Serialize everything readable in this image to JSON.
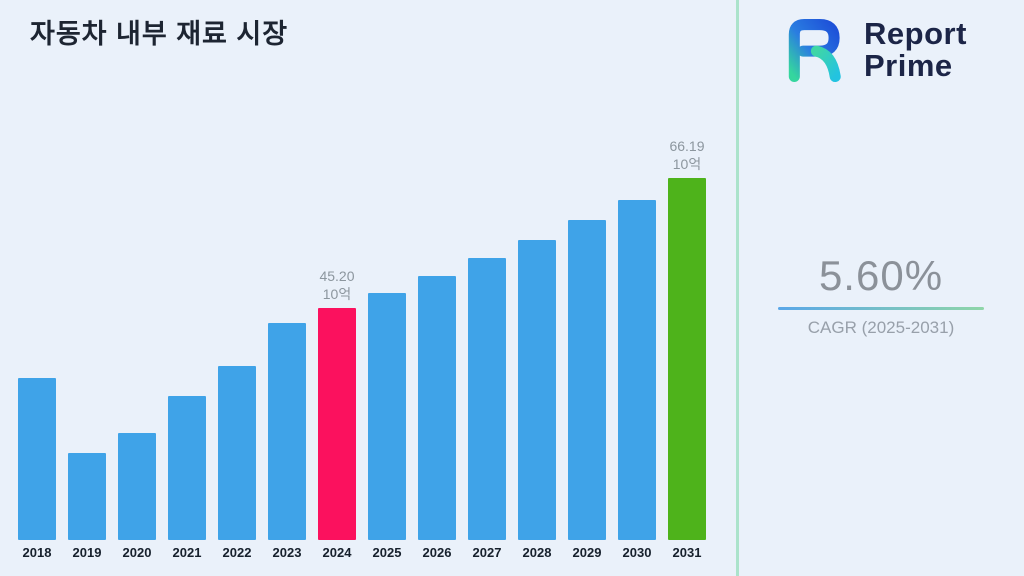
{
  "page": {
    "title": "자동차 내부 재료 시장"
  },
  "logo": {
    "line1": "Report",
    "line2": "Prime",
    "text_color": "#1c2547"
  },
  "stats": {
    "cagr_value": "5.60%",
    "cagr_label": "CAGR (2025-2031)"
  },
  "chart_data": {
    "type": "bar",
    "title": "자동차 내부 재료 시장",
    "xlabel": "",
    "ylabel": "",
    "unit_label": "10억",
    "categories": [
      "2018",
      "2019",
      "2020",
      "2021",
      "2022",
      "2023",
      "2024",
      "2025",
      "2026",
      "2027",
      "2028",
      "2029",
      "2030",
      "2031"
    ],
    "values": [
      34.0,
      22.0,
      25.2,
      31.2,
      36.0,
      42.9,
      45.2,
      47.73,
      50.4,
      53.22,
      56.2,
      59.35,
      62.67,
      66.19
    ],
    "ylim": [
      8,
      70
    ],
    "grid": false,
    "legend": "none",
    "colors": {
      "default": "#3fa3e8",
      "2024": "#fb115e",
      "2031": "#4eb31b"
    },
    "annotations": [
      {
        "category": "2024",
        "value_label": "45.20",
        "unit": "10억"
      },
      {
        "category": "2031",
        "value_label": "66.19",
        "unit": "10억"
      }
    ]
  }
}
